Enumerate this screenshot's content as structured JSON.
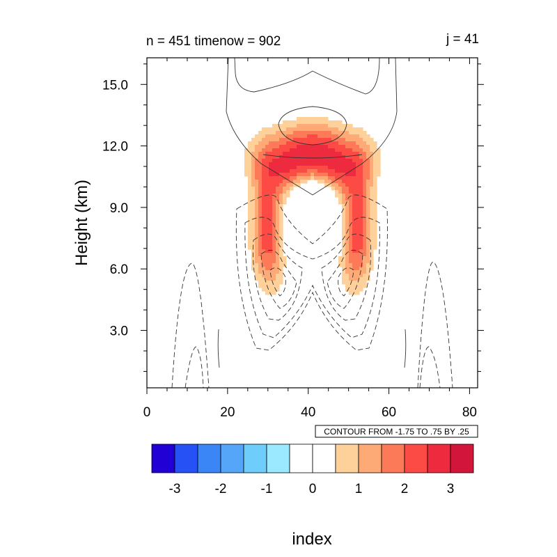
{
  "chart_data": {
    "type": "heatmap",
    "title_left": "n = 451 timenow = 902",
    "title_right": "j = 41",
    "xlabel": "index",
    "ylabel": "Height (km)",
    "xlim": [
      0,
      82
    ],
    "ylim": [
      0.2,
      16.3
    ],
    "x_ticks": [
      0,
      20,
      40,
      60,
      80
    ],
    "x_tick_labels": [
      "0",
      "20",
      "40",
      "60",
      "80"
    ],
    "y_ticks": [
      3,
      6,
      9,
      12,
      15
    ],
    "y_tick_labels": [
      "3.0",
      "6.0",
      "9.0",
      "12.0",
      "15.0"
    ],
    "contour_info": "CONTOUR FROM -1.75 TO .75 BY .25",
    "colorbar": {
      "colors": [
        "#2100d6",
        "#2652f5",
        "#3a86f7",
        "#55a6f9",
        "#6fcdfb",
        "#9ae9fe",
        "#ffffff",
        "#ffffff",
        "#fed19a",
        "#fdaa76",
        "#fd7a59",
        "#fc4a45",
        "#ee2a3e",
        "#d2153a"
      ],
      "tick_labels": [
        "-3",
        "-2",
        "-1",
        "0",
        "1",
        "2",
        "3"
      ]
    },
    "shading_levels": [
      {
        "value": 0.75,
        "color": "#fed19a"
      },
      {
        "value": 1.25,
        "color": "#fdaa76"
      },
      {
        "value": 1.75,
        "color": "#fd7a59"
      },
      {
        "value": 2.25,
        "color": "#fc4a45"
      },
      {
        "value": 2.75,
        "color": "#ee2a3e"
      }
    ],
    "lobes": [
      {
        "x": 30.5,
        "y": 7.2,
        "sx": 3.2,
        "sy": 1.7,
        "amp": 2.1
      },
      {
        "x": 51.5,
        "y": 7.2,
        "sx": 3.2,
        "sy": 1.7,
        "amp": 2.1
      },
      {
        "x": 29.0,
        "y": 9.5,
        "sx": 2.4,
        "sy": 1.8,
        "amp": 1.1
      },
      {
        "x": 53.0,
        "y": 9.5,
        "sx": 2.4,
        "sy": 1.8,
        "amp": 1.1
      },
      {
        "x": 41.0,
        "y": 11.3,
        "sx": 10.0,
        "sy": 0.9,
        "amp": 2.8
      },
      {
        "x": 41.0,
        "y": 12.6,
        "sx": 7.0,
        "sy": 0.7,
        "amp": 1.1
      },
      {
        "x": 34.0,
        "y": 10.2,
        "sx": 3.5,
        "sy": 1.0,
        "amp": 1.0
      },
      {
        "x": 48.0,
        "y": 10.2,
        "sx": 3.5,
        "sy": 1.0,
        "amp": 1.0
      },
      {
        "x": 41.0,
        "y": 8.3,
        "sx": 4.0,
        "sy": 1.2,
        "amp": -4.0
      }
    ]
  }
}
